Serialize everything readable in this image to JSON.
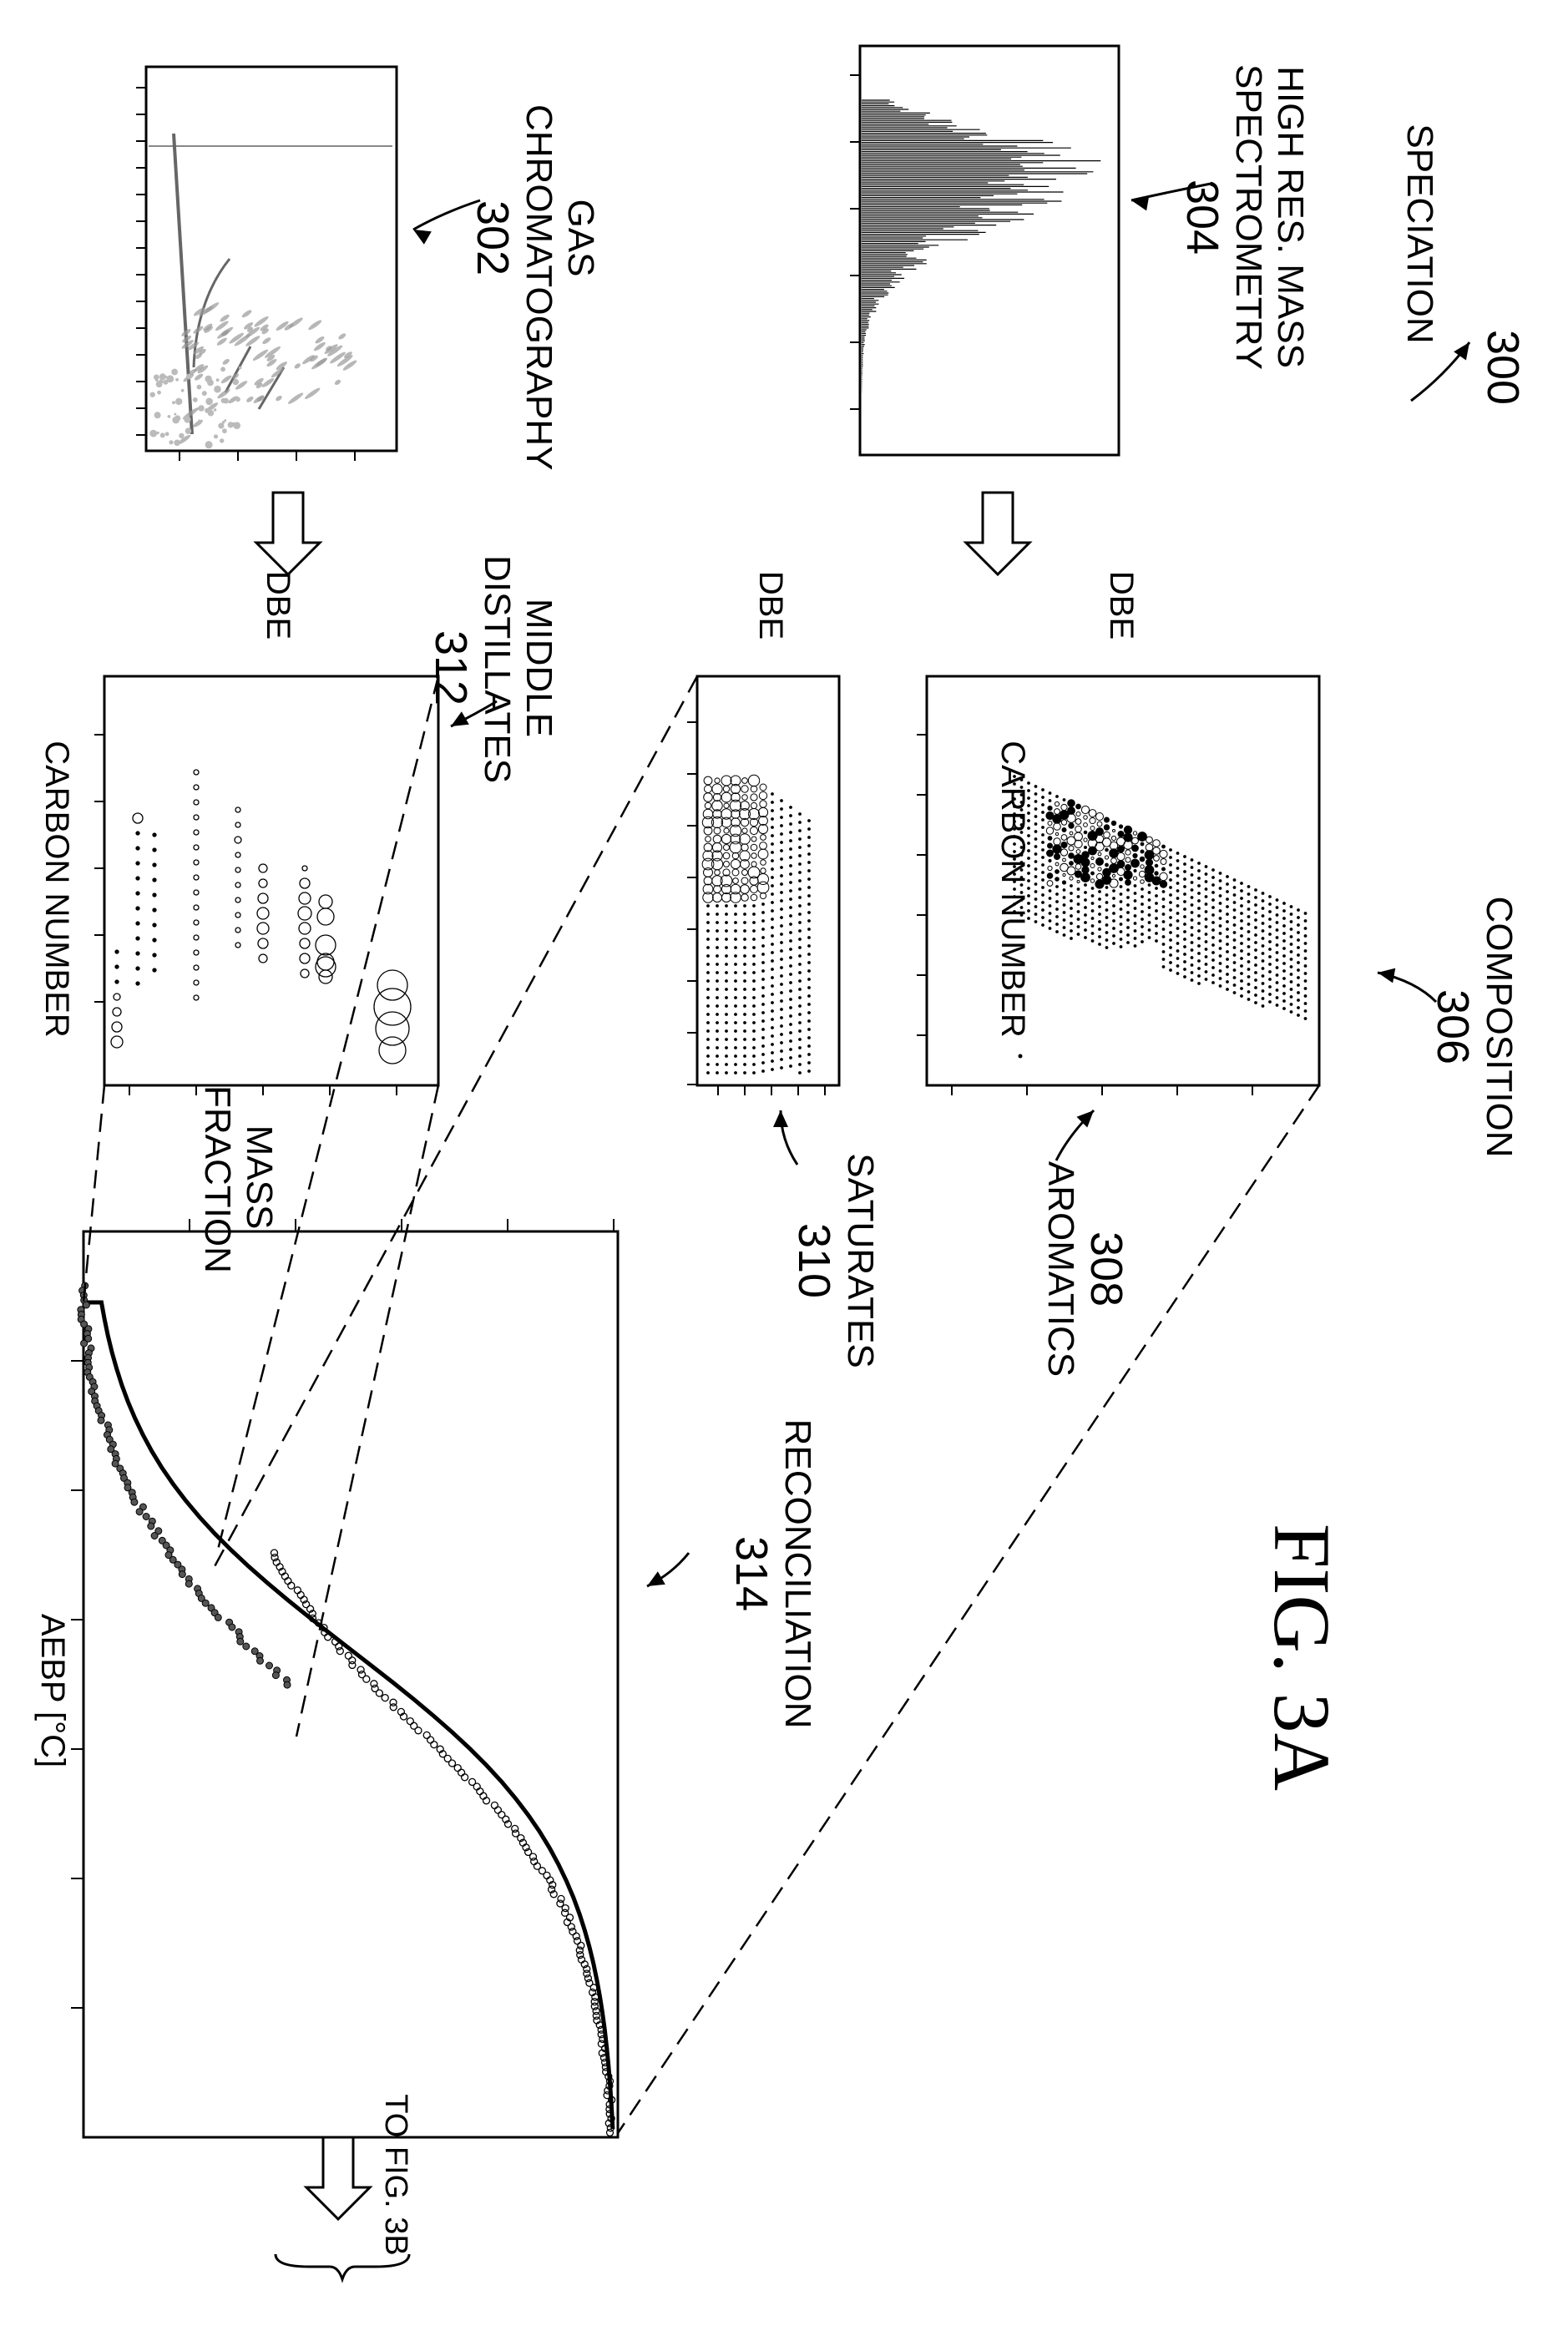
{
  "figure": {
    "ref": "300",
    "title": "FIG. 3A",
    "continuation": "TO FIG. 3B"
  },
  "blocks": {
    "speciation": {
      "label": "SPECIATION"
    },
    "hrms": {
      "lines": [
        "HIGH RES. MASS",
        "SPECTROMETRY"
      ],
      "ref": "304"
    },
    "gc": {
      "lines": [
        "GAS",
        "CHROMATOGRAPHY"
      ],
      "ref": "302"
    },
    "composition": {
      "label": "COMPOSITION",
      "ref": "306"
    },
    "aromatics": {
      "label": "AROMATICS",
      "ref": "308"
    },
    "saturates": {
      "label": "SATURATES",
      "ref": "310"
    },
    "middle": {
      "lines": [
        "MIDDLE",
        "DISTILLATES"
      ],
      "ref": "312"
    },
    "reconciliation": {
      "label": "RECONCILIATION",
      "ref": "314"
    }
  },
  "axes": {
    "dbe": "DBE",
    "carbon_number": "CARBON NUMBER",
    "mass_fraction": [
      "MASS",
      "FRACTION"
    ],
    "aebp": "AEBP [°C]"
  },
  "icons": [
    "down-arrow-icon",
    "continuation-brace-icon",
    "leader-arrow-icon"
  ]
}
